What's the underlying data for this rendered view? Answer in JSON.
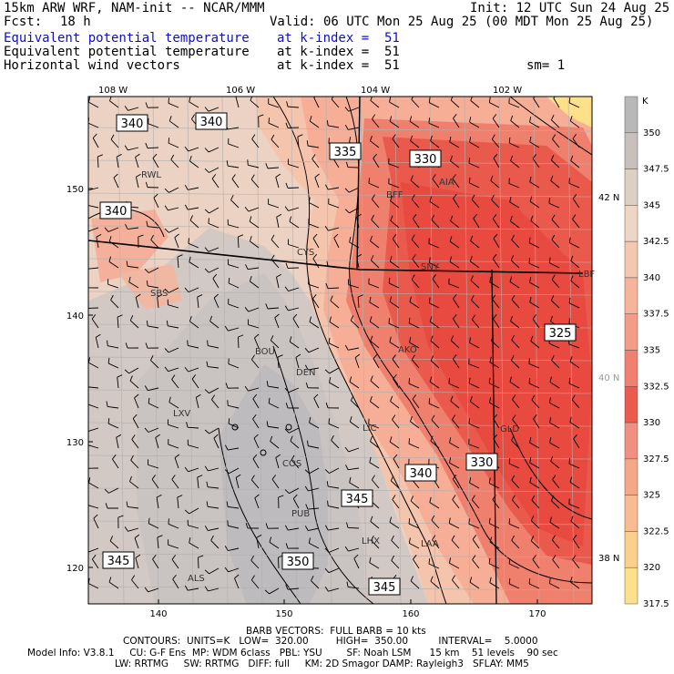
{
  "header": {
    "model": "15km ARW WRF, NAM-init -- NCAR/MMM",
    "init": "Init: 12 UTC Sun 24 Aug 25",
    "fcst_label": "Fcst:",
    "fcst_value": "18 h",
    "valid": "Valid: 06 UTC Mon 25 Aug 25 (00 MDT Mon 25 Aug 25)",
    "fields": [
      {
        "name": "Equivalent potential temperature",
        "level": "at k-index =  51",
        "color": "#1010c0"
      },
      {
        "name": "Equivalent potential temperature",
        "level": "at k-index =  51",
        "color": "#000000"
      },
      {
        "name": "Horizontal wind vectors",
        "level": "at k-index =  51",
        "color": "#000000"
      }
    ],
    "smoothing": "sm= 1"
  },
  "map": {
    "top_lon_ticks": [
      "108 W",
      "106 W",
      "104 W",
      "102 W"
    ],
    "right_lat_ticks": [
      "42 N",
      "40 N",
      "38 N"
    ],
    "left_y_ticks": [
      "150",
      "140",
      "130",
      "120"
    ],
    "bottom_x_ticks": [
      "140",
      "150",
      "160",
      "170"
    ],
    "stations": [
      "RWL",
      "BFF",
      "AIA",
      "CYS",
      "SNY",
      "LBF",
      "SBS",
      "BOU",
      "AKO",
      "DEN",
      "LXV",
      "LIC",
      "GLD",
      "COS",
      "PUB",
      "LHX",
      "LAA",
      "ALS"
    ],
    "contour_labels": [
      "340",
      "340",
      "335",
      "330",
      "340",
      "325",
      "340",
      "330",
      "345",
      "350",
      "345",
      "345"
    ],
    "fill_colors": {
      "cool": "#c8c4c4",
      "mid": "#f2c6a8",
      "warm": "#e8403a",
      "hot": "#fde08a"
    }
  },
  "colorbar": {
    "unit": "K",
    "labels": [
      "350",
      "347.5",
      "345",
      "342.5",
      "340",
      "337.5",
      "335",
      "332.5",
      "330",
      "327.5",
      "325",
      "322.5",
      "320",
      "317.5"
    ],
    "colors": [
      "#b8b8b8",
      "#c8c0bc",
      "#dccfc4",
      "#eed6c4",
      "#f4c8b0",
      "#f6b49a",
      "#f49c86",
      "#f08070",
      "#ec5a4e",
      "#f09080",
      "#f5a888",
      "#f8bc90",
      "#fbd08c",
      "#fde08a"
    ]
  },
  "footer": {
    "barb": "BARB VECTORS:  FULL BARB = 10 kts",
    "contours": "CONTOURS:  UNITS=K   LOW=  320.00         HIGH=  350.00          INTERVAL=    5.0000",
    "model_info": "Model Info: V3.8.1     CU: G-F Ens  MP: WDM 6class   PBL: YSU        SF: Noah LSM      15 km    51 levels    90 sec",
    "model_info2": "LW: RRTMG     SW: RRTMG   DIFF: full     KM: 2D Smagor DAMP: Rayleigh3   SFLAY: MM5"
  }
}
